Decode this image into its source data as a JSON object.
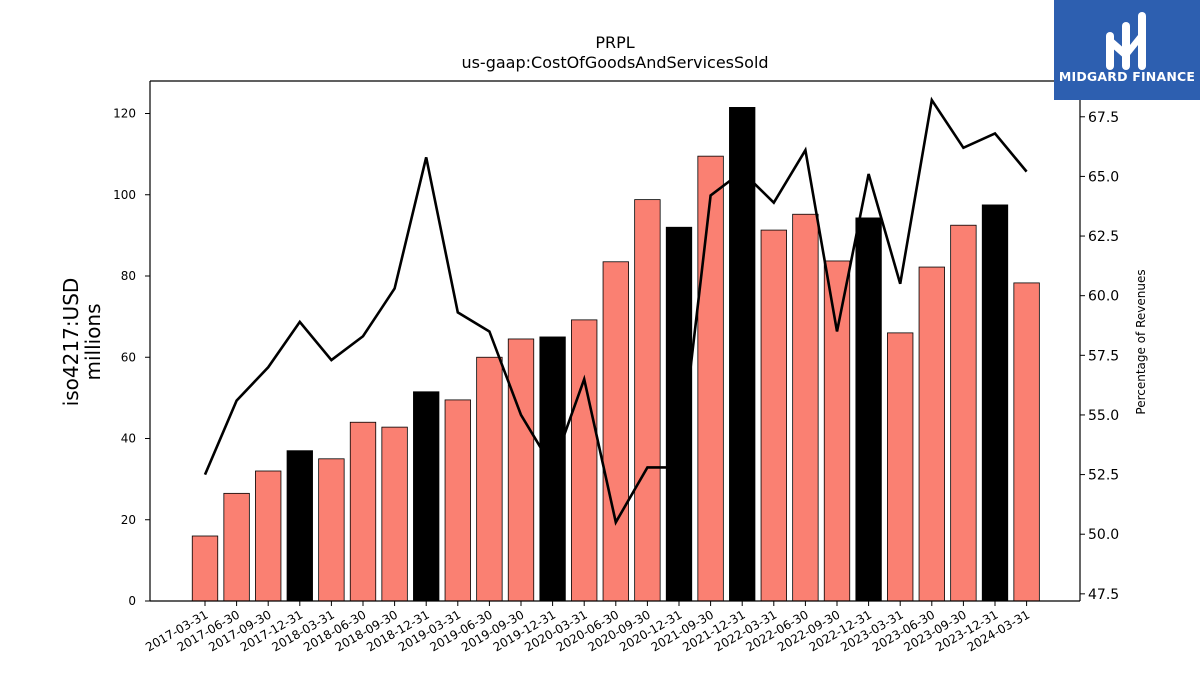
{
  "chart_data": {
    "type": "bar",
    "title": "PRPL",
    "subtitle": "us-gaap:CostOfGoodsAndServicesSold",
    "ylabel_line1": "iso4217:USD",
    "ylabel_line2": "millions",
    "y2label": "Percentage of Revenues",
    "ylim": [
      0,
      128
    ],
    "y2lim": [
      47.2,
      69.0
    ],
    "yticks": [
      "0",
      "20",
      "40",
      "60",
      "80",
      "100",
      "120"
    ],
    "y2ticks": [
      "47.5",
      "50.0",
      "52.5",
      "55.0",
      "57.5",
      "60.0",
      "62.5",
      "65.0",
      "67.5"
    ],
    "categories": [
      "2017-03-31",
      "2017-06-30",
      "2017-09-30",
      "2017-12-31",
      "2018-03-31",
      "2018-06-30",
      "2018-09-30",
      "2018-12-31",
      "2019-03-31",
      "2019-06-30",
      "2019-09-30",
      "2019-12-31",
      "2020-03-31",
      "2020-06-30",
      "2020-09-30",
      "2020-12-31",
      "2021-09-30",
      "2021-12-31",
      "2022-03-31",
      "2022-06-30",
      "2022-09-30",
      "2022-12-31",
      "2023-03-31",
      "2023-06-30",
      "2023-09-30",
      "2023-12-31",
      "2024-03-31"
    ],
    "values": [
      16.0,
      26.5,
      32.0,
      37.0,
      35.0,
      44.0,
      42.8,
      51.5,
      49.5,
      60.0,
      64.5,
      65.0,
      69.2,
      83.5,
      98.8,
      92.0,
      109.5,
      121.5,
      91.3,
      95.2,
      83.7,
      94.3,
      66.0,
      82.2,
      92.5,
      97.5,
      78.3
    ],
    "annual": [
      false,
      false,
      false,
      true,
      false,
      false,
      false,
      true,
      false,
      false,
      false,
      true,
      false,
      false,
      false,
      true,
      false,
      true,
      false,
      false,
      false,
      true,
      false,
      false,
      false,
      true,
      false
    ],
    "line_values": [
      52.5,
      55.6,
      57.0,
      58.9,
      57.3,
      58.3,
      60.3,
      65.8,
      59.3,
      58.5,
      55.0,
      52.8,
      56.5,
      50.5,
      52.8,
      52.8,
      64.2,
      65.2,
      63.9,
      66.1,
      58.5,
      65.1,
      60.5,
      68.2,
      66.2,
      66.8,
      65.2
    ],
    "colors": {
      "quarterly": "#fa8072",
      "annual": "#000000",
      "line": "#000000"
    }
  },
  "logo": {
    "text": "MIDGARD FINANCE",
    "bg": "#2d5fb0"
  }
}
